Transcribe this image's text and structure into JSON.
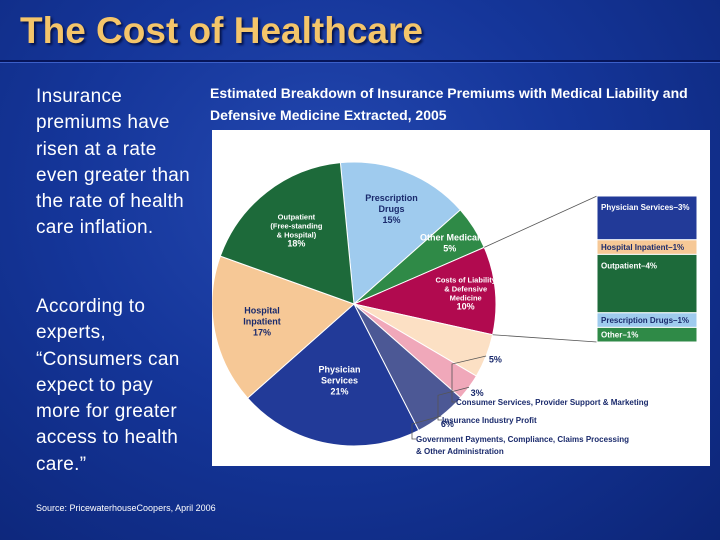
{
  "slide": {
    "title": "The Cost of Healthcare",
    "paragraph_1": "Insurance premiums have risen at a rate even greater than the rate of health care inflation.",
    "paragraph_2": "According to experts, “Consumers can expect to pay more for greater access to health care.”",
    "source": "Source:  PricewaterhouseCoopers, April 2006"
  },
  "chart_data": {
    "type": "pie",
    "title": "Estimated Breakdown of Insurance Premiums with Medical Liability and Defensive Medicine Extracted, 2005",
    "slices": [
      {
        "label": [
          "Prescription",
          "Drugs"
        ],
        "value": 15,
        "value_label": "15%",
        "color": "#9fcbee"
      },
      {
        "label": [
          "Other Medical"
        ],
        "value": 5,
        "value_label": "5%",
        "color": "#2f8a47"
      },
      {
        "label": [
          "Costs of Liability",
          "& Defensive",
          "Medicine"
        ],
        "value": 10,
        "value_label": "10%",
        "color": "#b10a4f"
      },
      {
        "label": [],
        "value": 5,
        "value_label": "5%",
        "color": "#fce0c4"
      },
      {
        "label": [],
        "value": 3,
        "value_label": "3%",
        "color": "#f0a8ba"
      },
      {
        "label": [],
        "value": 6,
        "value_label": "6%",
        "color": "#4c5895"
      },
      {
        "label": [
          "Physician",
          "Services"
        ],
        "value": 21,
        "value_label": "21%",
        "color": "#223a98"
      },
      {
        "label": [
          "Hospital",
          "Inpatient"
        ],
        "value": 17,
        "value_label": "17%",
        "color": "#f6c896"
      },
      {
        "label": [
          "Outpatient",
          "(Free-standing",
          "& Hospital)"
        ],
        "value": 18,
        "value_label": "18%",
        "color": "#1d6a3a"
      }
    ],
    "breakdown_bar": [
      {
        "label": "Physician Services–3%",
        "value": 3,
        "color": "#223a98"
      },
      {
        "label": "Hospital Inpatient–1%",
        "value": 1,
        "color": "#f6c896"
      },
      {
        "label": "Outpatient–4%",
        "value": 4,
        "color": "#1d6a3a"
      },
      {
        "label": "Prescription Drugs–1%",
        "value": 1,
        "color": "#9fcbee"
      },
      {
        "label": "Other–1%",
        "value": 1,
        "color": "#2f8a47"
      }
    ],
    "annotations": [
      "Consumer Services, Provider Support & Marketing",
      "Insurance Industry Profit",
      "Government Payments, Compliance, Claims Processing",
      "& Other Administration"
    ]
  }
}
